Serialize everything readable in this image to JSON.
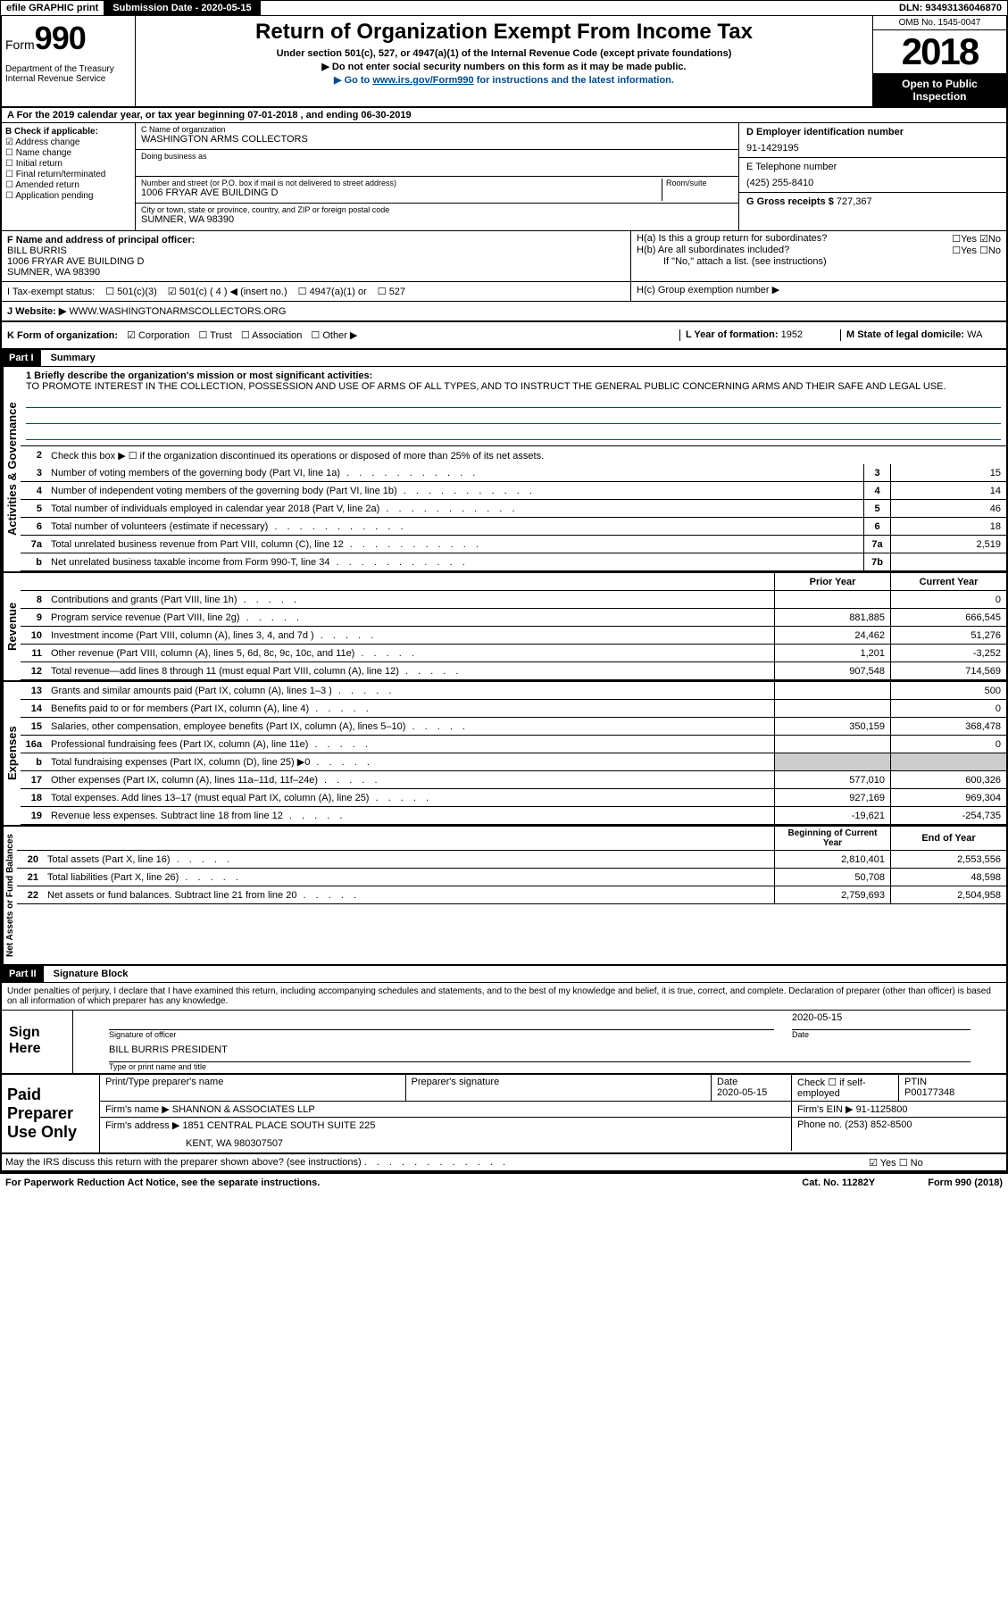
{
  "top": {
    "efile": "efile GRAPHIC print",
    "submission_label": "Submission Date - 2020-05-15",
    "dln": "DLN: 93493136046870"
  },
  "header": {
    "form_prefix": "Form",
    "form_number": "990",
    "dept": "Department of the Treasury\nInternal Revenue Service",
    "title": "Return of Organization Exempt From Income Tax",
    "subtitle": "Under section 501(c), 527, or 4947(a)(1) of the Internal Revenue Code (except private foundations)",
    "note1": "▶ Do not enter social security numbers on this form as it may be made public.",
    "note2_pre": "▶ Go to ",
    "note2_link": "www.irs.gov/Form990",
    "note2_post": " for instructions and the latest information.",
    "omb": "OMB No. 1545-0047",
    "year": "2018",
    "open": "Open to Public Inspection"
  },
  "period": "A For the 2019 calendar year, or tax year beginning 07-01-2018    , and ending 06-30-2019",
  "checkB": {
    "label": "B Check if applicable:",
    "items": [
      "Address change",
      "Name change",
      "Initial return",
      "Final return/terminated",
      "Amended return",
      "Application pending"
    ],
    "checked_index": 0
  },
  "org": {
    "name_label": "C Name of organization",
    "name": "WASHINGTON ARMS COLLECTORS",
    "dba_label": "Doing business as",
    "dba": "",
    "addr_label": "Number and street (or P.O. box if mail is not delivered to street address)",
    "room_label": "Room/suite",
    "addr": "1006 FRYAR AVE BUILDING D",
    "city_label": "City or town, state or province, country, and ZIP or foreign postal code",
    "city": "SUMNER, WA  98390"
  },
  "ein": {
    "label": "D Employer identification number",
    "value": "91-1429195",
    "phone_label": "E Telephone number",
    "phone": "(425) 255-8410",
    "gross_label": "G Gross receipts $",
    "gross": "727,367"
  },
  "officer": {
    "label": "F  Name and address of principal officer:",
    "name": "BILL BURRIS",
    "addr1": "1006 FRYAR AVE BUILDING D",
    "addr2": "SUMNER, WA   98390"
  },
  "h": {
    "ha": "H(a)  Is this a group return for subordinates?",
    "ha_ans": "No",
    "hb": "H(b)  Are all subordinates included?",
    "hb_note": "If \"No,\" attach a list. (see instructions)",
    "hc": "H(c)  Group exemption number ▶"
  },
  "tax_status": "I   Tax-exempt status:",
  "tax_checked": "501(c) ( 4 ) ◀ (insert no.)",
  "tax_opts": [
    "501(c)(3)",
    "4947(a)(1) or",
    "527"
  ],
  "website": {
    "label": "J  Website: ▶",
    "value": "WWW.WASHINGTONARMSCOLLECTORS.ORG"
  },
  "korg": {
    "label": "K Form of organization:",
    "opts": [
      "Corporation",
      "Trust",
      "Association",
      "Other ▶"
    ],
    "checked": 0,
    "year_label": "L Year of formation:",
    "year": "1952",
    "state_label": "M State of legal domicile:",
    "state": "WA"
  },
  "part1_label": "Part I",
  "part1_title": "Summary",
  "mission": {
    "label": "1  Briefly describe the organization's mission or most significant activities:",
    "text": "TO PROMOTE INTEREST IN THE COLLECTION, POSSESSION AND USE OF ARMS OF ALL TYPES, AND TO INSTRUCT THE GENERAL PUBLIC CONCERNING ARMS AND THEIR SAFE AND LEGAL USE."
  },
  "line2": "Check this box ▶ ☐ if the organization discontinued its operations or disposed of more than 25% of its net assets.",
  "activities": {
    "rows": [
      {
        "n": "3",
        "t": "Number of voting members of the governing body (Part VI, line 1a)",
        "box": "3",
        "v": "15"
      },
      {
        "n": "4",
        "t": "Number of independent voting members of the governing body (Part VI, line 1b)",
        "box": "4",
        "v": "14"
      },
      {
        "n": "5",
        "t": "Total number of individuals employed in calendar year 2018 (Part V, line 2a)",
        "box": "5",
        "v": "46"
      },
      {
        "n": "6",
        "t": "Total number of volunteers (estimate if necessary)",
        "box": "6",
        "v": "18"
      },
      {
        "n": "7a",
        "t": "Total unrelated business revenue from Part VIII, column (C), line 12",
        "box": "7a",
        "v": "2,519"
      },
      {
        "n": "b",
        "t": "Net unrelated business taxable income from Form 990-T, line 34",
        "box": "7b",
        "v": ""
      }
    ]
  },
  "rev_hdr": {
    "prior": "Prior Year",
    "current": "Current Year"
  },
  "revenue": {
    "rows": [
      {
        "n": "8",
        "t": "Contributions and grants (Part VIII, line 1h)",
        "p": "",
        "c": "0"
      },
      {
        "n": "9",
        "t": "Program service revenue (Part VIII, line 2g)",
        "p": "881,885",
        "c": "666,545"
      },
      {
        "n": "10",
        "t": "Investment income (Part VIII, column (A), lines 3, 4, and 7d )",
        "p": "24,462",
        "c": "51,276"
      },
      {
        "n": "11",
        "t": "Other revenue (Part VIII, column (A), lines 5, 6d, 8c, 9c, 10c, and 11e)",
        "p": "1,201",
        "c": "-3,252"
      },
      {
        "n": "12",
        "t": "Total revenue—add lines 8 through 11 (must equal Part VIII, column (A), line 12)",
        "p": "907,548",
        "c": "714,569"
      }
    ]
  },
  "expenses": {
    "rows": [
      {
        "n": "13",
        "t": "Grants and similar amounts paid (Part IX, column (A), lines 1–3 )",
        "p": "",
        "c": "500"
      },
      {
        "n": "14",
        "t": "Benefits paid to or for members (Part IX, column (A), line 4)",
        "p": "",
        "c": "0"
      },
      {
        "n": "15",
        "t": "Salaries, other compensation, employee benefits (Part IX, column (A), lines 5–10)",
        "p": "350,159",
        "c": "368,478"
      },
      {
        "n": "16a",
        "t": "Professional fundraising fees (Part IX, column (A), line 11e)",
        "p": "",
        "c": "0"
      },
      {
        "n": "b",
        "t": "Total fundraising expenses (Part IX, column (D), line 25) ▶0",
        "p": "shaded",
        "c": "shaded"
      },
      {
        "n": "17",
        "t": "Other expenses (Part IX, column (A), lines 11a–11d, 11f–24e)",
        "p": "577,010",
        "c": "600,326"
      },
      {
        "n": "18",
        "t": "Total expenses. Add lines 13–17 (must equal Part IX, column (A), line 25)",
        "p": "927,169",
        "c": "969,304"
      },
      {
        "n": "19",
        "t": "Revenue less expenses. Subtract line 18 from line 12",
        "p": "-19,621",
        "c": "-254,735"
      }
    ]
  },
  "net_hdr": {
    "begin": "Beginning of Current Year",
    "end": "End of Year"
  },
  "netassets": {
    "rows": [
      {
        "n": "20",
        "t": "Total assets (Part X, line 16)",
        "p": "2,810,401",
        "c": "2,553,556"
      },
      {
        "n": "21",
        "t": "Total liabilities (Part X, line 26)",
        "p": "50,708",
        "c": "48,598"
      },
      {
        "n": "22",
        "t": "Net assets or fund balances. Subtract line 21 from line 20",
        "p": "2,759,693",
        "c": "2,504,958"
      }
    ]
  },
  "part2_label": "Part II",
  "part2_title": "Signature Block",
  "sig_text": "Under penalties of perjury, I declare that I have examined this return, including accompanying schedules and statements, and to the best of my knowledge and belief, it is true, correct, and complete. Declaration of preparer (other than officer) is based on all information of which preparer has any knowledge.",
  "sign": {
    "here": "Sign Here",
    "sig_officer": "Signature of officer",
    "date_label": "Date",
    "date": "2020-05-15",
    "name": "BILL BURRIS  PRESIDENT",
    "name_label": "Type or print name and title"
  },
  "prep": {
    "label": "Paid Preparer Use Only",
    "print_name": "Print/Type preparer's name",
    "prep_sig": "Preparer's signature",
    "date_label": "Date",
    "date": "2020-05-15",
    "check_self": "Check ☐ if self-employed",
    "ptin_label": "PTIN",
    "ptin": "P00177348",
    "firm_name_label": "Firm's name    ▶",
    "firm_name": "SHANNON & ASSOCIATES LLP",
    "firm_ein_label": "Firm's EIN ▶",
    "firm_ein": "91-1125800",
    "firm_addr_label": "Firm's address ▶",
    "firm_addr1": "1851 CENTRAL PLACE SOUTH SUITE 225",
    "firm_addr2": "KENT, WA  980307507",
    "phone_label": "Phone no.",
    "phone": "(253) 852-8500"
  },
  "discuss": "May the IRS discuss this return with the preparer shown above? (see instructions)",
  "discuss_ans": "Yes",
  "footer": {
    "paperwork": "For Paperwork Reduction Act Notice, see the separate instructions.",
    "cat": "Cat. No. 11282Y",
    "form": "Form 990 (2018)"
  },
  "side_labels": {
    "activities": "Activities & Governance",
    "revenue": "Revenue",
    "expenses": "Expenses",
    "netassets": "Net Assets or Fund Balances"
  }
}
